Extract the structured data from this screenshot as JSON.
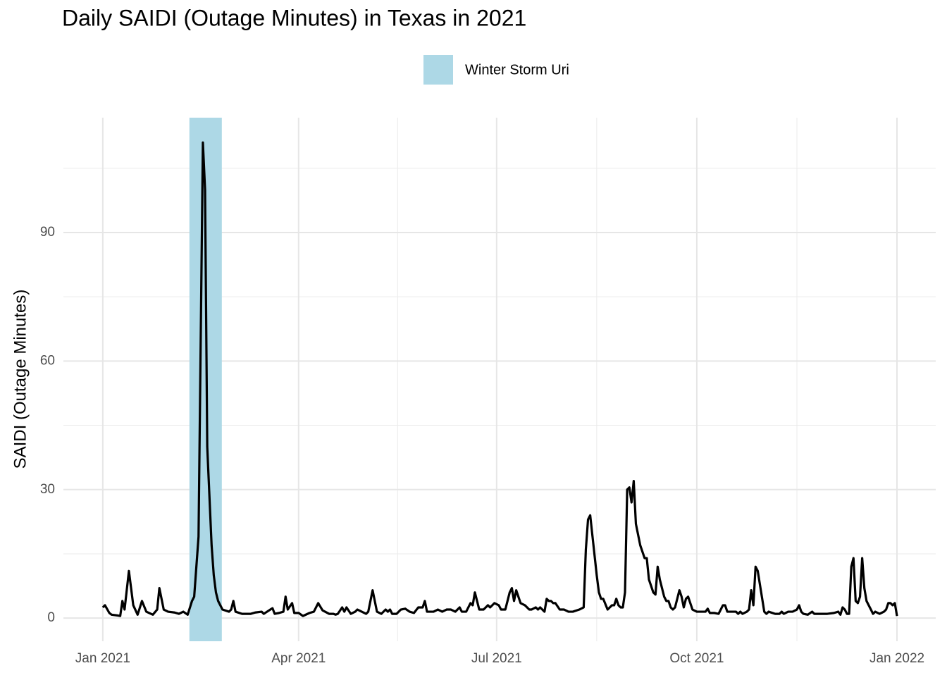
{
  "chart_data": {
    "type": "line",
    "title": "Daily SAIDI (Outage Minutes) in Texas in 2021",
    "y_label": "SAIDI (Outage Minutes)",
    "storm": {
      "label": "Winter Storm Uri",
      "x": [
        39.8,
        54.7
      ],
      "color": "#add8e6"
    },
    "series": [
      {
        "color": "#000000",
        "x": [
          0,
          1,
          3,
          4,
          7,
          8,
          9,
          10,
          12,
          14,
          16,
          18,
          20,
          23,
          25,
          26,
          28,
          30,
          33,
          35,
          37,
          39,
          41,
          42,
          44,
          46,
          47,
          48,
          50,
          51,
          52,
          53,
          55,
          58,
          59,
          60,
          61,
          64,
          68,
          70,
          73,
          74,
          77,
          78,
          79,
          81,
          83,
          84,
          85,
          87,
          88,
          90,
          92,
          95,
          97,
          99,
          101,
          104,
          106,
          107,
          108,
          110,
          111,
          112,
          114,
          116,
          117,
          119,
          121,
          122,
          124,
          126,
          128,
          130,
          131,
          132,
          133,
          135,
          137,
          139,
          141,
          143,
          145,
          147,
          148,
          149,
          152,
          154,
          156,
          158,
          160,
          162,
          164,
          165,
          167,
          169,
          170,
          171,
          173,
          175,
          177,
          178,
          180,
          182,
          183,
          185,
          187,
          188,
          189,
          190,
          192,
          194,
          196,
          197,
          199,
          200,
          201,
          203,
          204,
          205,
          206,
          207,
          208,
          210,
          212,
          214,
          216,
          219,
          221,
          222,
          223,
          224,
          227,
          228,
          229,
          230,
          232,
          233,
          234,
          235,
          236,
          237,
          238,
          239,
          240,
          241,
          242,
          243,
          244,
          245,
          247,
          249,
          250,
          251,
          253,
          254,
          255,
          256,
          258,
          259,
          260,
          261,
          262,
          263,
          265,
          266,
          267,
          268,
          269,
          271,
          273,
          275,
          277,
          278,
          279,
          281,
          283,
          285,
          286,
          287,
          289,
          291,
          292,
          293,
          294,
          296,
          297,
          298,
          299,
          300,
          301,
          304,
          305,
          306,
          309,
          311,
          312,
          313,
          315,
          317,
          319,
          320,
          321,
          322,
          324,
          326,
          327,
          328,
          330,
          333,
          336,
          338,
          339,
          340,
          341,
          342,
          343,
          344,
          345,
          346,
          347,
          348,
          349,
          350,
          351,
          353,
          354,
          355,
          357,
          359,
          360,
          361,
          362,
          363,
          364,
          365
        ],
        "values": [
          2.5,
          3,
          1.2,
          0.8,
          0.6,
          0.5,
          4,
          2,
          11,
          3,
          0.8,
          4,
          1.5,
          0.8,
          2,
          7,
          2,
          1.5,
          1.3,
          1,
          1.5,
          0.8,
          4,
          5,
          19,
          111,
          100,
          40,
          17,
          10,
          6,
          4,
          2,
          1.5,
          2,
          4,
          1.5,
          1,
          1,
          1.3,
          1.5,
          1,
          2,
          2.3,
          1,
          1.2,
          1.5,
          5,
          2,
          3.5,
          1.2,
          1.2,
          0.5,
          1.2,
          1.5,
          3.5,
          1.8,
          1,
          1,
          0.8,
          1,
          2.5,
          1.5,
          2.5,
          1,
          1.5,
          2,
          1.5,
          1,
          1.5,
          6.5,
          1.5,
          1,
          2,
          1.5,
          2,
          1,
          1,
          2,
          2.2,
          1.5,
          1.2,
          2.5,
          2.5,
          4,
          1.5,
          1.5,
          2,
          1.5,
          2,
          2,
          1.5,
          2.5,
          1.5,
          1.5,
          3.5,
          3,
          6,
          2,
          2,
          3,
          2.5,
          3.5,
          3,
          2,
          2,
          6,
          7,
          4,
          6.5,
          3.5,
          3,
          2,
          2,
          2.5,
          2,
          2.5,
          1.5,
          4.5,
          4,
          4,
          3.5,
          3.5,
          2,
          2,
          1.5,
          1.5,
          2,
          2.5,
          16,
          23,
          24,
          10,
          6,
          4.5,
          4.5,
          2,
          2.5,
          3,
          3,
          4.5,
          3,
          2.5,
          2.5,
          6,
          30,
          30.5,
          27,
          32,
          22,
          17,
          14,
          14,
          9,
          6,
          5.5,
          12,
          9,
          5,
          4,
          4,
          2.5,
          2,
          2.5,
          6.5,
          5,
          2.5,
          4.5,
          5,
          2,
          1.5,
          1.5,
          1.5,
          2.2,
          1.2,
          1.2,
          1,
          3,
          3,
          1.5,
          1.5,
          1.5,
          1,
          1.5,
          1,
          1.5,
          2,
          6.5,
          3,
          12,
          11,
          1.5,
          1,
          1.5,
          1,
          1,
          1.5,
          1,
          1.5,
          1.5,
          2,
          3,
          1.5,
          1,
          0.8,
          1.5,
          1,
          1,
          1,
          1,
          1.2,
          1.5,
          0.8,
          2.5,
          2,
          1,
          1,
          12,
          14,
          4,
          3.5,
          5,
          14,
          7,
          4,
          2,
          1,
          1.5,
          1,
          1.5,
          2,
          3.5,
          3.5,
          3,
          3.5,
          0.5
        ]
      }
    ],
    "xlim": [
      -18.1,
      382.8
    ],
    "xticks": [
      {
        "value": 0,
        "label": "Jan 2021"
      },
      {
        "value": 90,
        "label": "Apr 2021"
      },
      {
        "value": 181,
        "label": "Jul 2021"
      },
      {
        "value": 273,
        "label": "Oct 2021"
      },
      {
        "value": 365,
        "label": "Jan 2022"
      }
    ],
    "minor_xticks": [
      45,
      135.5,
      227,
      319
    ],
    "ylim": [
      -5.4,
      116.8
    ],
    "yticks": [
      0,
      30,
      60,
      90
    ],
    "minor_yticks": [
      15,
      45,
      75,
      105
    ],
    "grid": true
  }
}
